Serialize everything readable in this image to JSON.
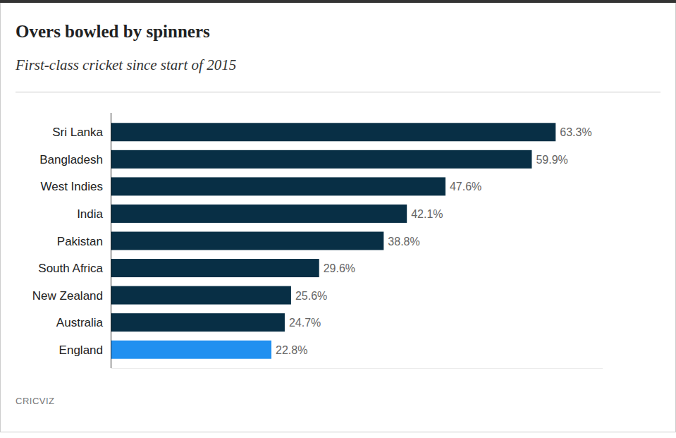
{
  "chart_data": {
    "type": "bar",
    "orientation": "horizontal",
    "title": "Overs bowled by spinners",
    "subtitle": "First-class cricket since start of 2015",
    "source": "CRICVIZ",
    "categories": [
      "Sri Lanka",
      "Bangladesh",
      "West Indies",
      "India",
      "Pakistan",
      "South Africa",
      "New Zealand",
      "Australia",
      "England"
    ],
    "values": [
      63.3,
      59.9,
      47.6,
      42.1,
      38.8,
      29.6,
      25.6,
      24.7,
      22.8
    ],
    "value_labels": [
      "63.3%",
      "59.9%",
      "47.6%",
      "42.1%",
      "38.8%",
      "29.6%",
      "25.6%",
      "24.7%",
      "22.8%"
    ],
    "colors": [
      "#082f45",
      "#082f45",
      "#082f45",
      "#082f45",
      "#082f45",
      "#082f45",
      "#082f45",
      "#082f45",
      "#2190f0"
    ],
    "xlim": [
      0,
      70
    ],
    "data_labels": true,
    "tick_labels": "y",
    "grid": false
  }
}
